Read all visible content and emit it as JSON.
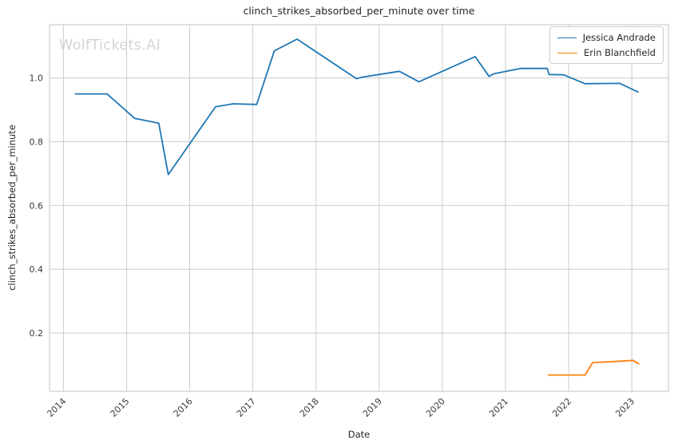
{
  "watermark": "WolfTickets.AI",
  "chart_data": {
    "type": "line",
    "title": "clinch_strikes_absorbed_per_minute over time",
    "xlabel": "Date",
    "ylabel": "clinch_strikes_absorbed_per_minute",
    "x_ticks": [
      2014,
      2015,
      2016,
      2017,
      2018,
      2019,
      2020,
      2021,
      2022,
      2023
    ],
    "y_ticks": [
      0.2,
      0.4,
      0.6,
      0.8,
      1.0
    ],
    "xlim": [
      2013.78,
      2023.58
    ],
    "ylim": [
      0.017,
      1.167
    ],
    "grid": true,
    "grid_color": "#cccccc",
    "spine_color": "#cccccc",
    "tick_label_color": "#3b3b3b",
    "legend_position": "upper right",
    "series": [
      {
        "name": "Jessica Andrade",
        "color": "#1f77b4",
        "points": [
          [
            2014.19,
            0.95
          ],
          [
            2014.69,
            0.95
          ],
          [
            2015.13,
            0.873
          ],
          [
            2015.51,
            0.858
          ],
          [
            2015.66,
            0.697
          ],
          [
            2016.41,
            0.91
          ],
          [
            2016.69,
            0.919
          ],
          [
            2017.06,
            0.917
          ],
          [
            2017.34,
            1.085
          ],
          [
            2017.7,
            1.122
          ],
          [
            2018.64,
            0.998
          ],
          [
            2018.74,
            1.003
          ],
          [
            2019.32,
            1.021
          ],
          [
            2019.63,
            0.988
          ],
          [
            2020.52,
            1.067
          ],
          [
            2020.74,
            1.005
          ],
          [
            2020.81,
            1.013
          ],
          [
            2021.24,
            1.03
          ],
          [
            2021.66,
            1.03
          ],
          [
            2021.69,
            1.011
          ],
          [
            2021.92,
            1.01
          ],
          [
            2022.26,
            0.982
          ],
          [
            2022.81,
            0.983
          ],
          [
            2023.1,
            0.956
          ]
        ]
      },
      {
        "name": "Erin Blanchfield",
        "color": "#ff7f0e",
        "points": [
          [
            2021.68,
            0.068
          ],
          [
            2022.26,
            0.068
          ],
          [
            2022.38,
            0.107
          ],
          [
            2022.95,
            0.113
          ],
          [
            2023.02,
            0.114
          ],
          [
            2023.11,
            0.103
          ]
        ]
      }
    ]
  }
}
